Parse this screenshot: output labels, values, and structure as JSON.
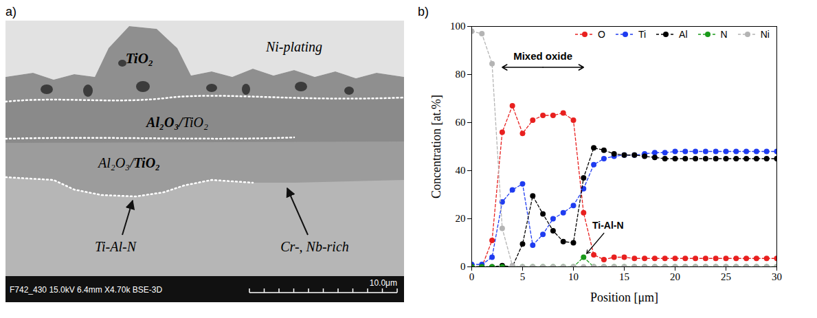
{
  "micrograph": {
    "label": "a)",
    "layers": [
      "Ni-plating",
      "TiO₂",
      "Al₂O₃/TiO₂",
      "Al₂O₃/TiO₂"
    ],
    "annotations": [
      "Ti-Al-N",
      "Cr-, Nb-rich"
    ],
    "footer": "F742_430 15.0kV 6.4mm X4.70k BSE-3D",
    "scale_bar": "10.0μm"
  },
  "chart_data": {
    "label": "b)",
    "type": "line",
    "xlabel": "Position [μm]",
    "ylabel": "Concentration [at.%]",
    "x": [
      0,
      1,
      2,
      3,
      4,
      5,
      6,
      7,
      8,
      9,
      10,
      11,
      12,
      13,
      14,
      15,
      16,
      17,
      18,
      19,
      20,
      21,
      22,
      23,
      24,
      25,
      26,
      27,
      28,
      29,
      30
    ],
    "series": [
      {
        "name": "O",
        "color": "#e8201f",
        "values": [
          0,
          0,
          11,
          56,
          67,
          55.5,
          61,
          63,
          63,
          64,
          61,
          22.5,
          5,
          3,
          4,
          4,
          3.5,
          3.5,
          3.5,
          3.5,
          3.5,
          3.5,
          3.5,
          3.5,
          3.5,
          3.5,
          3.5,
          3.5,
          3.5,
          3.5,
          3.5
        ]
      },
      {
        "name": "Ti",
        "color": "#1f3cf0",
        "values": [
          1,
          1,
          4,
          27,
          32,
          34.5,
          9,
          13.5,
          20,
          22.5,
          25.5,
          32.5,
          42.5,
          45,
          46,
          46.5,
          46.5,
          47,
          47.5,
          47.5,
          48,
          48,
          48,
          48,
          48,
          48,
          48,
          48,
          48,
          48,
          48
        ]
      },
      {
        "name": "Al",
        "color": "#000000",
        "values": [
          0,
          0,
          0,
          0.5,
          0,
          9.5,
          29.5,
          22,
          15,
          10.5,
          10,
          37,
          49.5,
          48.5,
          47,
          46.5,
          46.5,
          46,
          45.5,
          45,
          45,
          45,
          45,
          45,
          45,
          45,
          45,
          45,
          45,
          45,
          45
        ]
      },
      {
        "name": "N",
        "color": "#1a9a1a",
        "values": [
          0,
          0,
          0,
          0,
          0,
          0,
          0,
          0,
          0,
          0,
          0,
          4,
          0,
          0,
          0,
          0,
          0,
          0,
          0,
          0,
          0,
          0,
          0,
          0,
          0,
          0,
          0,
          0,
          0,
          0,
          0
        ]
      },
      {
        "name": "Ni",
        "color": "#b4b4b4",
        "values": [
          98,
          97,
          84.5,
          16,
          0.5,
          0,
          0,
          0,
          0,
          0,
          0,
          0,
          0,
          0,
          0,
          0,
          0,
          0,
          0,
          0,
          0,
          0,
          0,
          0,
          0,
          0,
          0,
          0,
          0,
          0,
          0
        ]
      }
    ],
    "xlim": [
      0,
      30
    ],
    "xticks": [
      0,
      5,
      10,
      15,
      20,
      25,
      30
    ],
    "ylim": [
      0,
      100
    ],
    "yticks": [
      0,
      20,
      40,
      60,
      80,
      100
    ],
    "legend": "top",
    "marker": "circle",
    "line_style": "dashed",
    "annotations": [
      {
        "text": "Mixed oxide",
        "x": [
          3,
          11
        ],
        "y": 83
      },
      {
        "text": "Ti-Al-N",
        "x": 11,
        "y": 4
      }
    ]
  }
}
